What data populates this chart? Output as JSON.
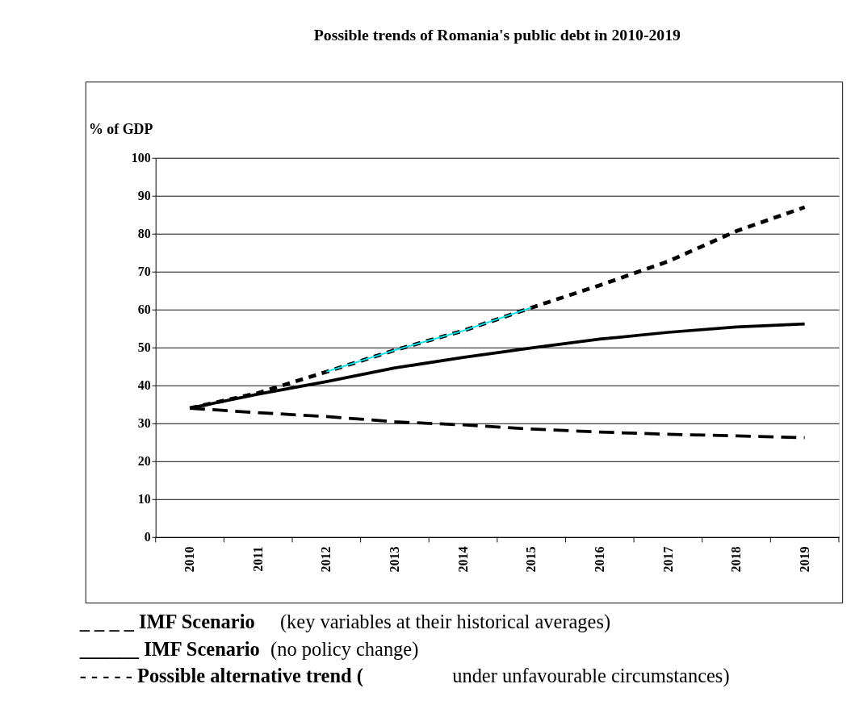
{
  "chart_data": {
    "type": "line",
    "title": "Possible trends of Romania's public debt in 2010-2019",
    "ylabel": "% of GDP",
    "categories": [
      "2010",
      "2011",
      "2012",
      "2013",
      "2014",
      "2015",
      "2016",
      "2017",
      "2018",
      "2019"
    ],
    "series": [
      {
        "color": "#000000",
        "line_style": "dashed",
        "values": [
          34,
          32.8,
          31.8,
          30.4,
          29.6,
          28.5,
          27.7,
          27.1,
          26.7,
          26.2
        ]
      },
      {
        "color": "#000000",
        "line_style": "solid",
        "values": [
          34,
          37.7,
          41,
          44.6,
          47.4,
          49.9,
          52.2,
          54,
          55.4,
          56.2
        ]
      },
      {
        "color": "#000000",
        "line_style": "dotted",
        "values": [
          34,
          38,
          43.6,
          49.3,
          54.4,
          60.5,
          66.4,
          72.7,
          80.7,
          87
        ]
      },
      {
        "color": "#00e5ee",
        "line_style": "solid",
        "values": [
          null,
          null,
          43.6,
          49.3,
          54.4,
          60.5,
          null,
          null,
          null,
          null
        ]
      }
    ],
    "ylim": [
      0,
      100
    ],
    "yticks": [
      0,
      10,
      20,
      30,
      40,
      50,
      60,
      70,
      80,
      90,
      100
    ],
    "grid": "y",
    "annotations": [
      "_ _ _ _ IMF Scenario",
      "(key variables at their historical averages)",
      "______ IMF Scenario",
      "(no policy change)",
      "- - - - - Possible alternative trend (",
      "under unfavourable circumstances)"
    ]
  }
}
